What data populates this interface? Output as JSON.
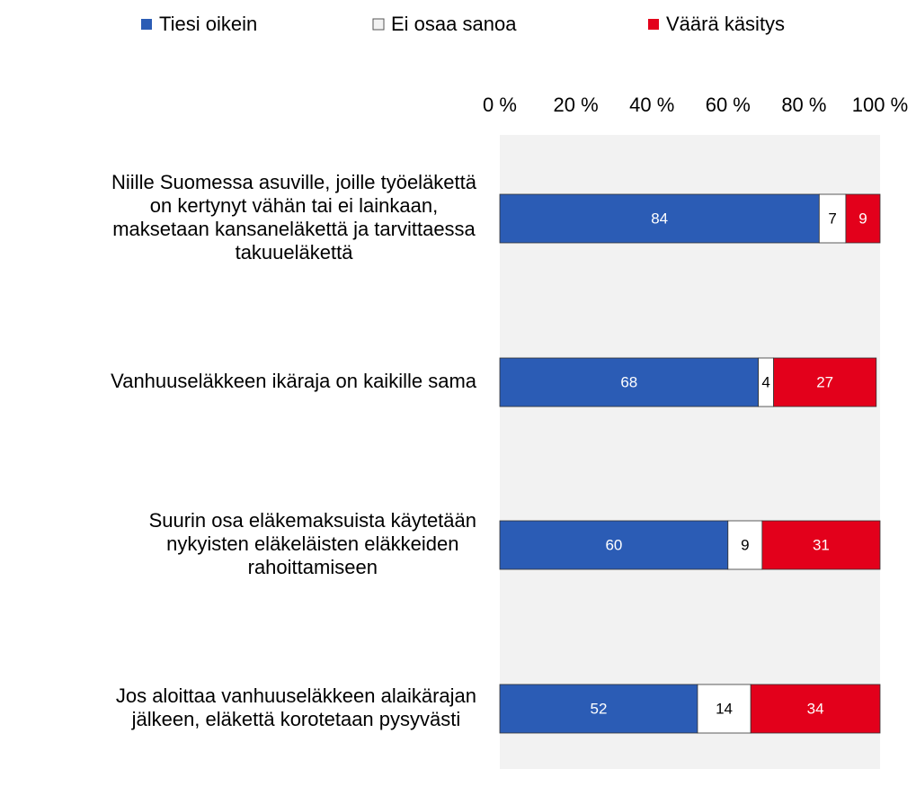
{
  "chart_data": {
    "type": "stacked-barh",
    "categories": [
      "Niille Suomessa asuville, joille työeläkettä\non kertynyt vähän tai ei lainkaan,\nmaksetaan kansaneläkettä ja tarvittaessa\ntakuueläkettä",
      "Vanhuuseläkkeen ikäraja on kaikille sama",
      "Suurin osa eläkemaksuista käytetään\nnykyisten eläkeläisten eläkkeiden\nrahoittamiseen",
      "Jos aloittaa vanhuuseläkkeen alaikärajan\njälkeen, eläkettä korotetaan pysyvästi"
    ],
    "series": [
      {
        "name": "Tiesi oikein",
        "color": "#2b5cb5",
        "values": [
          84,
          68,
          60,
          52
        ]
      },
      {
        "name": "Ei osaa sanoa",
        "color": "#f2f2f2",
        "values": [
          7,
          4,
          9,
          14
        ]
      },
      {
        "name": "Väärä käsitys",
        "color": "#e3001b",
        "values": [
          9,
          27,
          31,
          34
        ]
      }
    ],
    "xlim": [
      0,
      100
    ],
    "xticks": [
      {
        "value": 0,
        "label": "0 %"
      },
      {
        "value": 20,
        "label": "20 %"
      },
      {
        "value": 40,
        "label": "40 %"
      },
      {
        "value": 60,
        "label": "60 %"
      },
      {
        "value": 80,
        "label": "80 %"
      },
      {
        "value": 100,
        "label": "100 %"
      }
    ],
    "legend": "top"
  }
}
